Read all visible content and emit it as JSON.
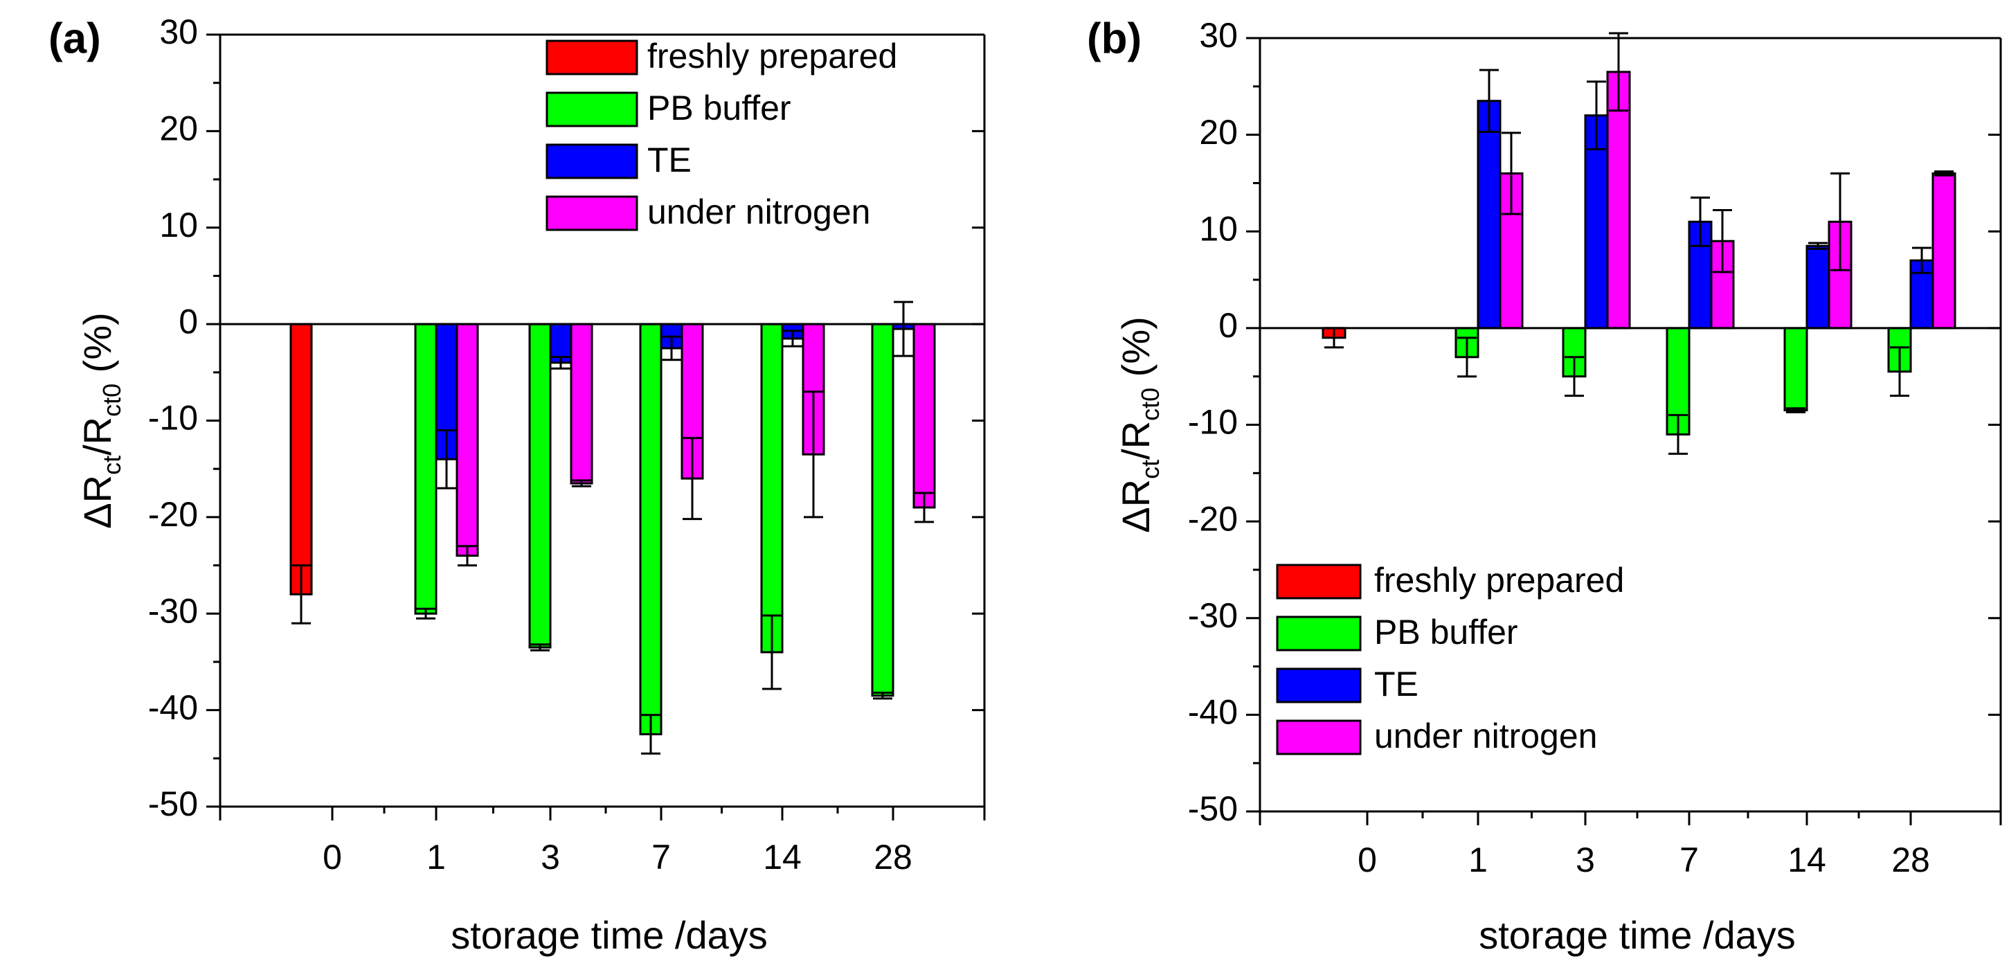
{
  "chart_data": [
    {
      "type": "bar",
      "panel_label": "(a)",
      "title": "",
      "xlabel": "storage time /days",
      "ylabel": {
        "main": "ΔR",
        "sub1": "ct",
        "mid": "/R",
        "sub2": "ct0",
        "unit": " (%)"
      },
      "ylim": [
        -50,
        30
      ],
      "yticks": [
        30,
        20,
        10,
        0,
        -10,
        -20,
        -30,
        -40,
        -50
      ],
      "categories": [
        "0",
        "1",
        "3",
        "7",
        "14",
        "28"
      ],
      "legend_position": "top-right",
      "series": [
        {
          "name": "freshly prepared",
          "color": "#ff0000",
          "values": [
            -28,
            null,
            null,
            null,
            null,
            null
          ],
          "errors": [
            3,
            null,
            null,
            null,
            null,
            null
          ]
        },
        {
          "name": "PB buffer",
          "color": "#00ff00",
          "values": [
            null,
            -30,
            -33.5,
            -42.5,
            -34,
            -38.5
          ],
          "errors": [
            null,
            0.5,
            0.3,
            2,
            3.8,
            0.3
          ]
        },
        {
          "name": "TE",
          "color": "#0000ff",
          "values": [
            null,
            -14,
            -4,
            -2.5,
            -1.5,
            -0.5
          ],
          "errors": [
            null,
            3,
            0.6,
            1.2,
            0.8,
            2.8
          ]
        },
        {
          "name": "under nitrogen",
          "color": "#ff00ff",
          "values": [
            null,
            -24,
            -16.5,
            -16,
            -13.5,
            -19
          ],
          "errors": [
            null,
            1,
            0.3,
            4.2,
            6.5,
            1.5
          ]
        }
      ]
    },
    {
      "type": "bar",
      "panel_label": "(b)",
      "title": "",
      "xlabel": "storage time /days",
      "ylabel": {
        "main": "ΔR",
        "sub1": "ct",
        "mid": "/R",
        "sub2": "ct0",
        "unit": " (%)"
      },
      "ylim": [
        -50,
        30
      ],
      "yticks": [
        30,
        20,
        10,
        0,
        -10,
        -20,
        -30,
        -40,
        -50
      ],
      "categories": [
        "0",
        "1",
        "3",
        "7",
        "14",
        "28"
      ],
      "legend_position": "bottom-left",
      "series": [
        {
          "name": "freshly prepared",
          "color": "#ff0000",
          "values": [
            -1,
            null,
            null,
            null,
            null,
            null
          ],
          "errors": [
            1,
            null,
            null,
            null,
            null,
            null
          ]
        },
        {
          "name": "PB buffer",
          "color": "#00ff00",
          "values": [
            null,
            -3,
            -5,
            -11,
            -8.5,
            -4.5
          ],
          "errors": [
            null,
            2,
            2,
            2,
            0.2,
            2.5
          ]
        },
        {
          "name": "TE",
          "color": "#0000ff",
          "values": [
            null,
            23.5,
            22,
            11,
            8.5,
            7
          ],
          "errors": [
            null,
            3.2,
            3.5,
            2.5,
            0.3,
            1.3
          ]
        },
        {
          "name": "under nitrogen",
          "color": "#ff00ff",
          "values": [
            null,
            16,
            26.5,
            9,
            11,
            16
          ],
          "errors": [
            null,
            4.2,
            4,
            3.2,
            5,
            0.2
          ]
        }
      ]
    }
  ]
}
